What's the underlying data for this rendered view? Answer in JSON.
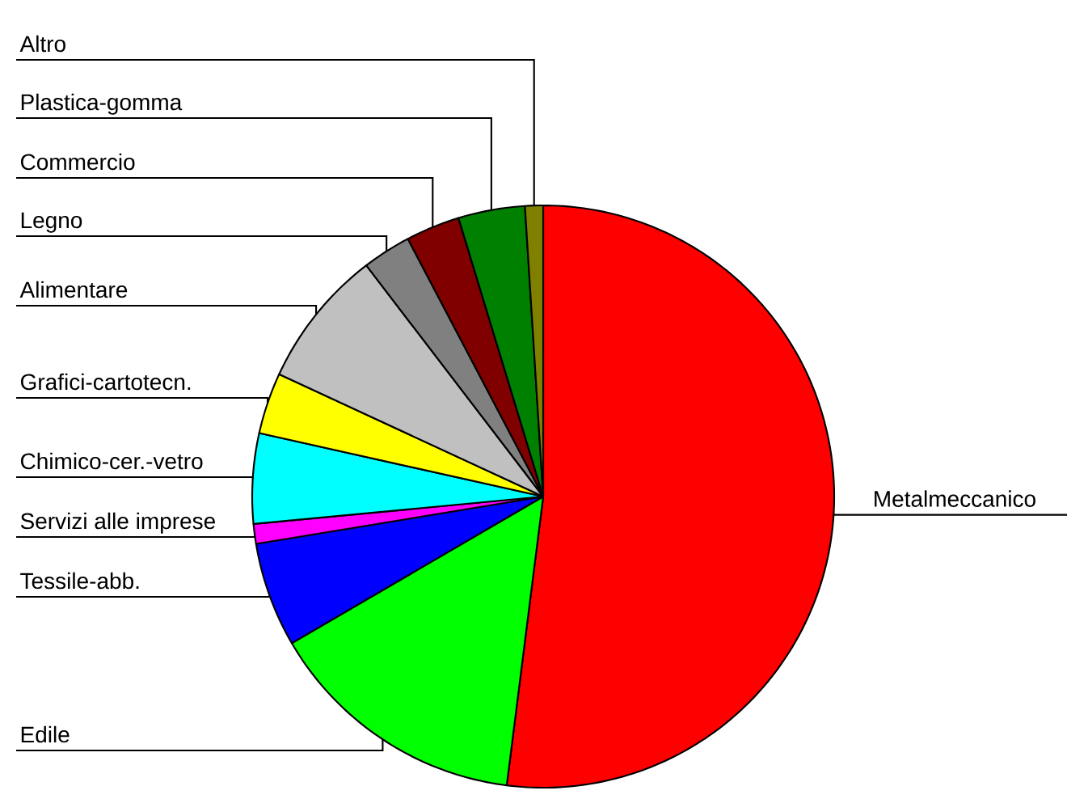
{
  "chart_data": {
    "type": "pie",
    "categories": [
      "Metalmeccanico",
      "Edile",
      "Tessile-abb.",
      "Servizi alle imprese",
      "Chimico-cer.-vetro",
      "Grafici-cartotecn.",
      "Alimentare",
      "Legno",
      "Commercio",
      "Plastica-gomma",
      "Altro"
    ],
    "values": [
      52,
      14.6,
      5.8,
      1.1,
      5,
      3.4,
      7.7,
      2.7,
      3,
      3.7,
      1
    ],
    "colors": [
      "#ff0000",
      "#00ff00",
      "#0000ff",
      "#ff00ff",
      "#00ffff",
      "#ffff00",
      "#c0c0c0",
      "#808080",
      "#800000",
      "#008000",
      "#808000"
    ]
  }
}
